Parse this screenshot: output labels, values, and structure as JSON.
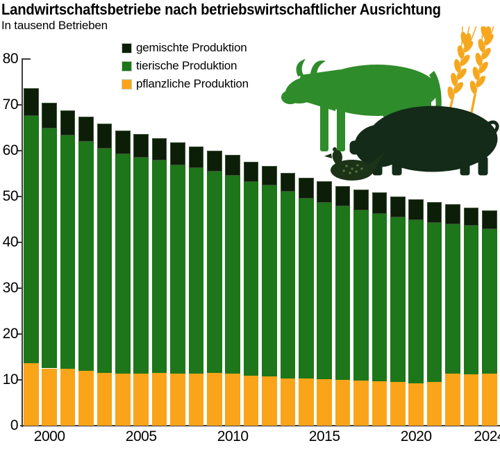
{
  "title": "Landwirtschaftsbetriebe nach betriebswirtschaftlicher Ausrichtung",
  "subtitle": "In tausend Betrieben",
  "legend": [
    {
      "label": "gemischte Produktion",
      "color": "#0C1E08"
    },
    {
      "label": "tierische Produktion",
      "color": "#1D7619"
    },
    {
      "label": "pflanzliche Produktion",
      "color": "#FAA41A"
    }
  ],
  "chart_data": {
    "type": "bar",
    "stacked": true,
    "title": "Landwirtschaftsbetriebe nach betriebswirtschaftlicher Ausrichtung",
    "ylabel": "In tausend Betrieben",
    "x": [
      1999,
      2000,
      2001,
      2002,
      2003,
      2004,
      2005,
      2006,
      2007,
      2008,
      2009,
      2010,
      2011,
      2012,
      2013,
      2014,
      2015,
      2016,
      2017,
      2018,
      2019,
      2020,
      2021,
      2022,
      2023,
      2024
    ],
    "series": [
      {
        "name": "pflanzliche Produktion",
        "color": "#FAA41A",
        "values": [
          13.6,
          12.5,
          12.4,
          12.0,
          11.5,
          11.4,
          11.3,
          11.5,
          11.4,
          11.3,
          11.5,
          11.3,
          10.9,
          10.7,
          10.3,
          10.3,
          10.2,
          10.0,
          9.8,
          9.7,
          9.5,
          9.2,
          9.5,
          11.4,
          11.2,
          11.3
        ]
      },
      {
        "name": "tierische Produktion",
        "color": "#1D7619",
        "values": [
          54.0,
          52.3,
          50.9,
          50.0,
          49.0,
          47.8,
          47.2,
          46.4,
          45.4,
          44.9,
          44.0,
          43.3,
          42.3,
          41.7,
          40.8,
          39.2,
          38.5,
          37.9,
          37.2,
          36.5,
          36.0,
          35.7,
          34.7,
          32.5,
          32.4,
          31.6
        ]
      },
      {
        "name": "gemischte Produktion",
        "color": "#0C1E08",
        "values": [
          6.0,
          5.7,
          5.5,
          5.4,
          5.4,
          5.2,
          5.1,
          4.8,
          5.0,
          4.7,
          4.5,
          4.5,
          4.4,
          4.2,
          4.1,
          4.6,
          4.6,
          4.4,
          4.5,
          4.7,
          4.5,
          4.5,
          4.6,
          4.4,
          4.0,
          4.0
        ]
      }
    ],
    "totals": [
      73.6,
      70.5,
      68.8,
      67.4,
      65.9,
      64.4,
      63.6,
      62.7,
      61.8,
      60.9,
      60.0,
      59.1,
      57.6,
      56.6,
      55.2,
      54.1,
      53.3,
      52.3,
      51.5,
      50.9,
      50.0,
      49.4,
      48.8,
      48.3,
      47.6,
      46.9
    ],
    "ylim": [
      0,
      80
    ],
    "ytick_labels": [
      "0",
      "10",
      "20",
      "30",
      "40",
      "50",
      "60",
      "70",
      "80"
    ],
    "xtick_labels": [
      "2000",
      "2005",
      "2010",
      "2015",
      "2020",
      "2024"
    ],
    "legend_position": "top-left-inside",
    "grid": false
  },
  "icons": [
    {
      "name": "cow-icon",
      "color": "#2F8C2B"
    },
    {
      "name": "wheat-icon",
      "color": "#F5A71E"
    },
    {
      "name": "pig-icon",
      "color": "#132B18"
    },
    {
      "name": "hen-icon",
      "color": "#1C3317"
    }
  ]
}
